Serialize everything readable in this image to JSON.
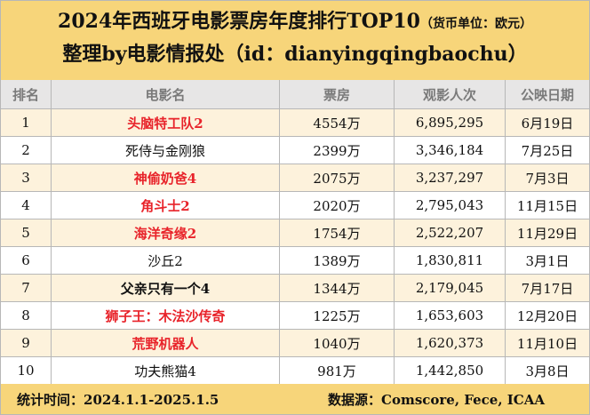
{
  "title": {
    "main": "2024年西班牙电影票房年度排行TOP10",
    "unit": "（货币单位：欧元）",
    "subtitle": "整理by电影情报处（id：dianyingqingbaochu）"
  },
  "table": {
    "headers": {
      "rank": "排名",
      "name": "电影名",
      "box_office": "票房",
      "audience": "观影人次",
      "release_date": "公映日期"
    },
    "rows": [
      {
        "rank": "1",
        "name": "头脑特工队2",
        "box_office": "4554万",
        "audience": "6,895,295",
        "release_date": "6月19日",
        "name_color": "#e8232a"
      },
      {
        "rank": "2",
        "name": "死侍与金刚狼",
        "box_office": "2399万",
        "audience": "3,346,184",
        "release_date": "7月25日",
        "name_color": "#111111"
      },
      {
        "rank": "3",
        "name": "神偷奶爸4",
        "box_office": "2075万",
        "audience": "3,237,297",
        "release_date": "7月3日",
        "name_color": "#e8232a"
      },
      {
        "rank": "4",
        "name": "角斗士2",
        "box_office": "2020万",
        "audience": "2,795,043",
        "release_date": "11月15日",
        "name_color": "#e8232a"
      },
      {
        "rank": "5",
        "name": "海洋奇缘2",
        "box_office": "1754万",
        "audience": "2,522,207",
        "release_date": "11月29日",
        "name_color": "#e8232a"
      },
      {
        "rank": "6",
        "name": "沙丘2",
        "box_office": "1389万",
        "audience": "1,830,811",
        "release_date": "3月1日",
        "name_color": "#111111"
      },
      {
        "rank": "7",
        "name": "父亲只有一个4",
        "box_office": "1344万",
        "audience": "2,179,045",
        "release_date": "7月17日",
        "name_color": "#111111"
      },
      {
        "rank": "8",
        "name": "狮子王：木法沙传奇",
        "box_office": "1225万",
        "audience": "1,653,603",
        "release_date": "12月20日",
        "name_color": "#e8232a"
      },
      {
        "rank": "9",
        "name": "荒野机器人",
        "box_office": "1040万",
        "audience": "1,620,373",
        "release_date": "11月10日",
        "name_color": "#e8232a"
      },
      {
        "rank": "10",
        "name": "功夫熊猫4",
        "box_office": "981万",
        "audience": "1,442,850",
        "release_date": "3月8日",
        "name_color": "#111111"
      }
    ]
  },
  "footer": {
    "period": "统计时间：2024.1.1-2025.1.5",
    "source": "数据源：Comscore, Fece, ICAA"
  },
  "colors": {
    "title_bg": "#f7d57a",
    "header_bg": "#e7e6e6",
    "odd_row_bg": "#fdf2dc",
    "highlight_text": "#e8232a"
  }
}
